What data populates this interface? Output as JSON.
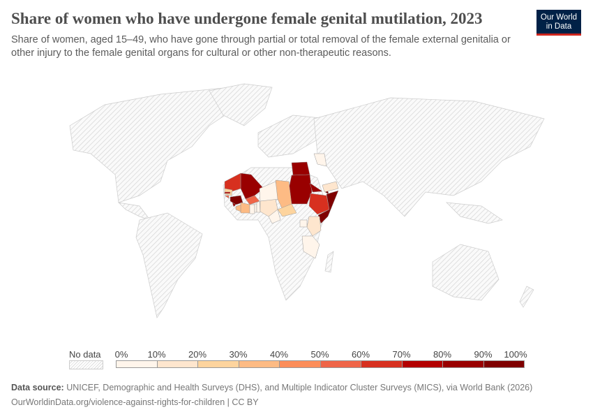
{
  "header": {
    "title": "Share of women who have undergone female genital mutilation, 2023",
    "subtitle": "Share of women, aged 15–49, who have gone through partial or total removal of the female external genitalia or other injury to the female genital organs for cultural or other non-therapeutic reasons.",
    "logo": "Our World in Data"
  },
  "chart_data": {
    "type": "choropleth",
    "unit": "%",
    "legend": {
      "no_data_label": "No data",
      "ticks": [
        "0%",
        "10%",
        "20%",
        "30%",
        "40%",
        "50%",
        "60%",
        "70%",
        "80%",
        "90%",
        "100%"
      ],
      "colors": [
        "#fff5eb",
        "#fee6ce",
        "#fdd49e",
        "#fdbb84",
        "#fc8d59",
        "#ef6548",
        "#d7301f",
        "#b30000",
        "#990000",
        "#7f0000"
      ]
    },
    "values": {
      "Egypt": 87,
      "Sudan": 87,
      "Ethiopia": 65,
      "Somalia": 99,
      "Djibouti": 94,
      "Eritrea": 83,
      "Mali": 89,
      "Mauritania": 64,
      "Guinea": 95,
      "Sierra Leone": 83,
      "Senegal": 25,
      "Gambia": 73,
      "Guinea-Bissau": 52,
      "Burkina Faso": 56,
      "Cote d'Ivoire": 37,
      "Liberia": 38,
      "Ghana": 2,
      "Togo": 3,
      "Benin": 9,
      "Nigeria": 15,
      "Niger": 2,
      "Chad": 34,
      "Cameroon": 1,
      "Central African Republic": 22,
      "Kenya": 15,
      "Tanzania": 8,
      "Uganda": 0.3,
      "Yemen": 19,
      "Iraq": 7
    }
  },
  "footer": {
    "source_label": "Data source:",
    "source": "UNICEF, Demographic and Health Surveys (DHS), and Multiple Indicator Cluster Surveys (MICS), via World Bank (2026)",
    "url": "OurWorldinData.org/violence-against-rights-for-children | CC BY"
  }
}
